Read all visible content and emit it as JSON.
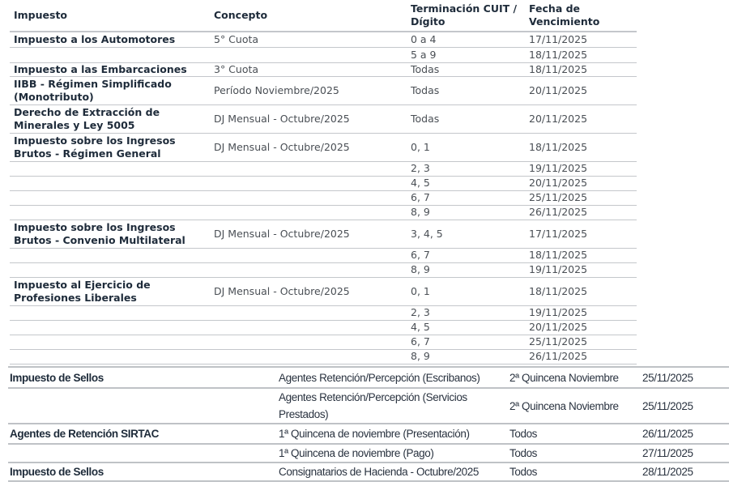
{
  "table1": {
    "headers": [
      "Impuesto",
      "Concepto",
      "Terminación CUIT / Dígito",
      "Fecha de Vencimiento"
    ],
    "rows": [
      {
        "impuesto": "Impuesto a los Automotores",
        "concepto": "5° Cuota",
        "terminacion": "0 a 4",
        "fecha": "17/11/2025"
      },
      {
        "impuesto": "",
        "concepto": "",
        "terminacion": "5 a 9",
        "fecha": "18/11/2025"
      },
      {
        "impuesto": "Impuesto a las Embarcaciones",
        "concepto": "3° Cuota",
        "terminacion": "Todas",
        "fecha": "18/11/2025"
      },
      {
        "impuesto": "IIBB - Régimen Simplificado (Monotributo)",
        "concepto": "Período Noviembre/2025",
        "terminacion": "Todas",
        "fecha": "20/11/2025"
      },
      {
        "impuesto": "Derecho de Extracción de Minerales y Ley 5005",
        "concepto": "DJ Mensual - Octubre/2025",
        "terminacion": "Todas",
        "fecha": "20/11/2025"
      },
      {
        "impuesto": "Impuesto sobre los Ingresos Brutos - Régimen General",
        "concepto": "DJ Mensual - Octubre/2025",
        "terminacion": "0, 1",
        "fecha": "18/11/2025"
      },
      {
        "impuesto": "",
        "concepto": "",
        "terminacion": "2, 3",
        "fecha": "19/11/2025"
      },
      {
        "impuesto": "",
        "concepto": "",
        "terminacion": "4, 5",
        "fecha": "20/11/2025"
      },
      {
        "impuesto": "",
        "concepto": "",
        "terminacion": "6, 7",
        "fecha": "25/11/2025"
      },
      {
        "impuesto": "",
        "concepto": "",
        "terminacion": "8, 9",
        "fecha": "26/11/2025"
      },
      {
        "impuesto": "Impuesto sobre los Ingresos Brutos - Convenio Multilateral",
        "concepto": "DJ Mensual - Octubre/2025",
        "terminacion": "3, 4, 5",
        "fecha": "17/11/2025"
      },
      {
        "impuesto": "",
        "concepto": "",
        "terminacion": "6, 7",
        "fecha": "18/11/2025"
      },
      {
        "impuesto": "",
        "concepto": "",
        "terminacion": "8, 9",
        "fecha": "19/11/2025"
      },
      {
        "impuesto": "Impuesto al Ejercicio de Profesiones Liberales",
        "concepto": "DJ Mensual - Octubre/2025",
        "terminacion": "0, 1",
        "fecha": "18/11/2025"
      },
      {
        "impuesto": "",
        "concepto": "",
        "terminacion": "2, 3",
        "fecha": "19/11/2025"
      },
      {
        "impuesto": "",
        "concepto": "",
        "terminacion": "4, 5",
        "fecha": "20/11/2025"
      },
      {
        "impuesto": "",
        "concepto": "",
        "terminacion": "6, 7",
        "fecha": "25/11/2025"
      },
      {
        "impuesto": "",
        "concepto": "",
        "terminacion": "8, 9",
        "fecha": "26/11/2025"
      }
    ]
  },
  "table2": {
    "rows": [
      {
        "impuesto": "Impuesto de Sellos",
        "concepto": "Agentes Retención/Percepción (Escribanos)",
        "terminacion": "2ª Quincena Noviembre",
        "fecha": "25/11/2025"
      },
      {
        "impuesto": "",
        "concepto": "Agentes Retención/Percepción (Servicios Prestados)",
        "terminacion": "2ª Quincena Noviembre",
        "fecha": "25/11/2025"
      },
      {
        "impuesto": "Agentes de Retención SIRTAC",
        "concepto": "1ª Quincena de noviembre (Presentación)",
        "terminacion": "Todos",
        "fecha": "26/11/2025"
      },
      {
        "impuesto": "",
        "concepto": "1ª Quincena de noviembre (Pago)",
        "terminacion": "Todos",
        "fecha": "27/11/2025"
      },
      {
        "impuesto": "Impuesto de Sellos",
        "concepto": "Consignatarios de Hacienda - Octubre/2025",
        "terminacion": "Todos",
        "fecha": "28/11/2025"
      }
    ]
  }
}
